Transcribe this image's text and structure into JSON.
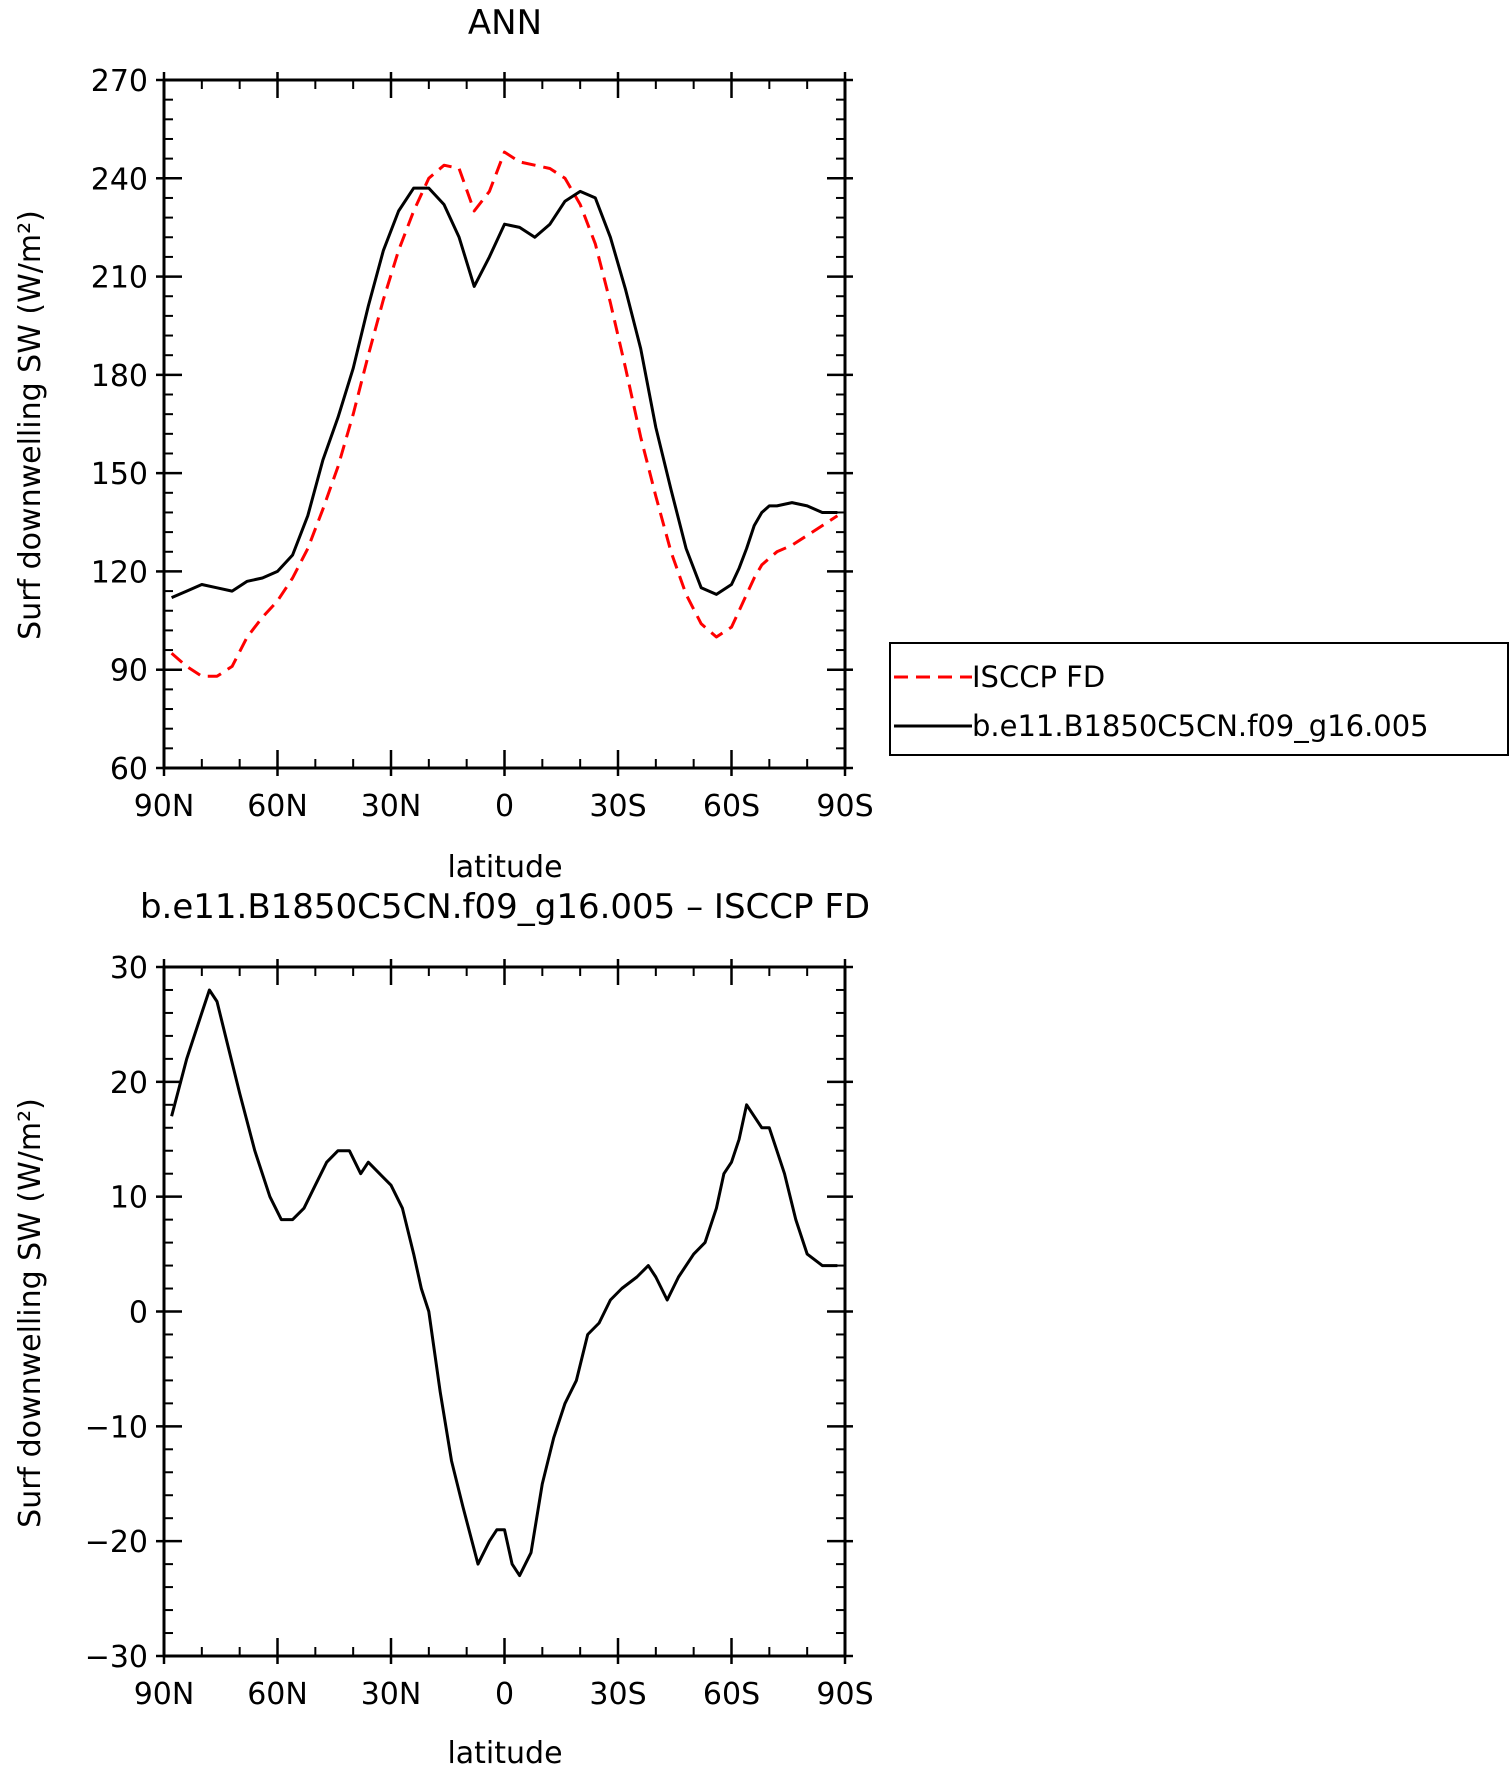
{
  "chart_data": [
    {
      "type": "line",
      "title": "ANN",
      "xlabel": "latitude",
      "ylabel": "Surf downwelling SW (W/m²)",
      "xlim": [
        90,
        -90
      ],
      "ylim": [
        60,
        270
      ],
      "xticks": [
        {
          "value": 90,
          "label": "90N"
        },
        {
          "value": 60,
          "label": "60N"
        },
        {
          "value": 30,
          "label": "30N"
        },
        {
          "value": 0,
          "label": "0"
        },
        {
          "value": -30,
          "label": "30S"
        },
        {
          "value": -60,
          "label": "60S"
        },
        {
          "value": -90,
          "label": "90S"
        }
      ],
      "yticks": [
        60,
        90,
        120,
        150,
        180,
        210,
        240,
        270
      ],
      "legend": {
        "placement": "right"
      },
      "series": [
        {
          "name": "ISCCP FD",
          "color": "#ff0000",
          "dash": true,
          "x": [
            88,
            84,
            80,
            76,
            72,
            68,
            64,
            60,
            56,
            52,
            48,
            44,
            40,
            36,
            32,
            28,
            24,
            20,
            16,
            12,
            8,
            4,
            0,
            -4,
            -8,
            -12,
            -16,
            -20,
            -24,
            -28,
            -32,
            -36,
            -40,
            -44,
            -48,
            -52,
            -56,
            -60,
            -62,
            -64,
            -66,
            -68,
            -70,
            -72,
            -76,
            -80,
            -84,
            -88
          ],
          "values": [
            95,
            91,
            88,
            88,
            91,
            100,
            106,
            111,
            118,
            127,
            139,
            152,
            168,
            186,
            203,
            218,
            230,
            240,
            244,
            243,
            230,
            236,
            248,
            245,
            244,
            243,
            240,
            232,
            220,
            202,
            182,
            161,
            143,
            126,
            113,
            104,
            100,
            103,
            108,
            113,
            118,
            122,
            124,
            126,
            128,
            131,
            134,
            137
          ]
        },
        {
          "name": "b.e11.B1850C5CN.f09_g16.005",
          "color": "#000000",
          "dash": false,
          "x": [
            88,
            84,
            80,
            76,
            72,
            68,
            64,
            60,
            56,
            52,
            48,
            44,
            40,
            36,
            32,
            28,
            24,
            20,
            16,
            12,
            8,
            4,
            0,
            -4,
            -8,
            -12,
            -16,
            -20,
            -24,
            -28,
            -32,
            -36,
            -40,
            -44,
            -48,
            -52,
            -56,
            -60,
            -62,
            -64,
            -66,
            -68,
            -70,
            -72,
            -76,
            -80,
            -84,
            -88
          ],
          "values": [
            112,
            114,
            116,
            115,
            114,
            117,
            118,
            120,
            125,
            137,
            154,
            167,
            182,
            201,
            218,
            230,
            237,
            237,
            232,
            222,
            207,
            216,
            226,
            225,
            222,
            226,
            233,
            236,
            234,
            222,
            206,
            188,
            164,
            145,
            127,
            115,
            113,
            116,
            121,
            127,
            134,
            138,
            140,
            140,
            141,
            140,
            138,
            138
          ]
        }
      ]
    },
    {
      "type": "line",
      "title": "b.e11.B1850C5CN.f09_g16.005 – ISCCP FD",
      "xlabel": "latitude",
      "ylabel": "Surf downwelling SW (W/m²)",
      "xlim": [
        90,
        -90
      ],
      "ylim": [
        -30,
        30
      ],
      "xticks": [
        {
          "value": 90,
          "label": "90N"
        },
        {
          "value": 60,
          "label": "60N"
        },
        {
          "value": 30,
          "label": "30N"
        },
        {
          "value": 0,
          "label": "0"
        },
        {
          "value": -30,
          "label": "30S"
        },
        {
          "value": -60,
          "label": "60S"
        },
        {
          "value": -90,
          "label": "90S"
        }
      ],
      "yticks": [
        {
          "value": -30,
          "label": "−30"
        },
        {
          "value": -20,
          "label": "−20"
        },
        {
          "value": -10,
          "label": "−10"
        },
        {
          "value": 0,
          "label": "0"
        },
        {
          "value": 10,
          "label": "10"
        },
        {
          "value": 20,
          "label": "20"
        },
        {
          "value": 30,
          "label": "30"
        }
      ],
      "series": [
        {
          "color": "#000000",
          "dash": false,
          "x": [
            88,
            84,
            80,
            78,
            76,
            73,
            70,
            66,
            62,
            59,
            56,
            53,
            50,
            47,
            44,
            41,
            38,
            36,
            33,
            30,
            27,
            24,
            22,
            20,
            17,
            14,
            11,
            7,
            4,
            2,
            0,
            -2,
            -4,
            -7,
            -10,
            -13,
            -16,
            -19,
            -22,
            -25,
            -28,
            -31,
            -35,
            -38,
            -40,
            -43,
            -46,
            -50,
            -53,
            -56,
            -58,
            -60,
            -62,
            -64,
            -66,
            -68,
            -70,
            -72,
            -74,
            -77,
            -80,
            -84,
            -88
          ],
          "values": [
            17,
            22,
            26,
            28,
            27,
            23,
            19,
            14,
            10,
            8,
            8,
            9,
            11,
            13,
            14,
            14,
            12,
            13,
            12,
            11,
            9,
            5,
            2,
            0,
            -7,
            -13,
            -17,
            -22,
            -20,
            -19,
            -19,
            -22,
            -23,
            -21,
            -15,
            -11,
            -8,
            -6,
            -2,
            -1,
            1,
            2,
            3,
            4,
            3,
            1,
            3,
            5,
            6,
            9,
            12,
            13,
            15,
            18,
            17,
            16,
            16,
            14,
            12,
            8,
            5,
            4,
            4
          ]
        }
      ]
    }
  ]
}
